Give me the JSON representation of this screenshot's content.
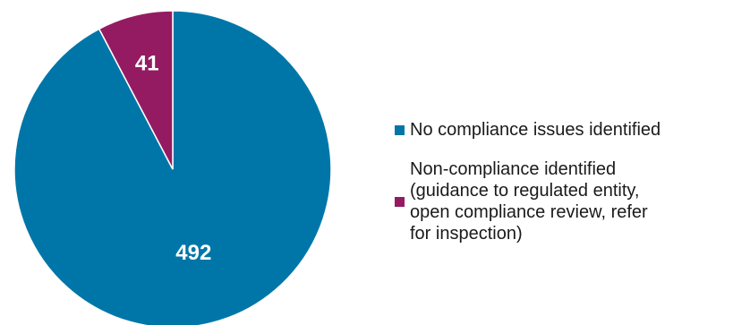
{
  "chart_data": {
    "type": "pie",
    "categories": [
      "No compliance issues identified",
      "Non-compliance identified\n(guidance to regulated entity,\nopen compliance review, refer\nfor inspection)"
    ],
    "values": [
      492,
      41
    ],
    "colors": [
      "#0076A8",
      "#941B62"
    ],
    "labels": [
      "492",
      "41"
    ],
    "legend_position": "right",
    "start_angle": "12 o'clock, clockwise"
  }
}
